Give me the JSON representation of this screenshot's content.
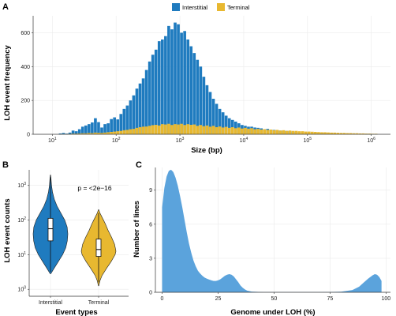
{
  "chart_data": [
    {
      "panel": "A",
      "type": "bar",
      "xlabel": "Size (bp)",
      "ylabel": "LOH event frequency",
      "x_scale": "log10",
      "xlim": [
        5,
        2000000
      ],
      "ylim": [
        0,
        700
      ],
      "x_ticks": [
        {
          "v": 10,
          "m": "10",
          "e": "1"
        },
        {
          "v": 100,
          "m": "10",
          "e": "2"
        },
        {
          "v": 1000,
          "m": "10",
          "e": "3"
        },
        {
          "v": 10000,
          "m": "10",
          "e": "4"
        },
        {
          "v": 100000,
          "m": "10",
          "e": "5"
        },
        {
          "v": 1000000,
          "m": "10",
          "e": "6"
        }
      ],
      "y_ticks": [
        "0",
        "200",
        "400",
        "600"
      ],
      "y_tick_values": [
        0,
        200,
        400,
        600
      ],
      "legend_position": "top",
      "bins_log10_start": [
        1.1,
        1.15,
        1.2,
        1.25,
        1.3,
        1.35,
        1.4,
        1.45,
        1.5,
        1.55,
        1.6,
        1.65,
        1.7,
        1.75,
        1.8,
        1.85,
        1.9,
        1.95,
        2.0,
        2.05,
        2.1,
        2.15,
        2.2,
        2.25,
        2.3,
        2.35,
        2.4,
        2.45,
        2.5,
        2.55,
        2.6,
        2.65,
        2.7,
        2.75,
        2.8,
        2.85,
        2.9,
        2.95,
        3.0,
        3.05,
        3.1,
        3.15,
        3.2,
        3.25,
        3.3,
        3.35,
        3.4,
        3.45,
        3.5,
        3.55,
        3.6,
        3.65,
        3.7,
        3.75,
        3.8,
        3.85,
        3.9,
        3.95,
        4.0,
        4.05,
        4.1,
        4.15,
        4.2,
        4.25,
        4.3,
        4.35,
        4.4,
        4.45,
        4.5,
        4.55,
        4.6,
        4.65,
        4.7,
        4.75,
        4.8,
        4.85,
        4.9,
        4.95,
        5.0,
        5.05,
        5.1,
        5.15,
        5.2,
        5.25,
        5.3,
        5.35,
        5.4,
        5.45,
        5.5,
        5.55,
        5.6,
        5.65,
        5.7,
        5.75,
        5.8,
        5.85,
        5.9,
        5.95,
        6.0,
        6.05
      ],
      "bin_width_log10": 0.05,
      "series": [
        {
          "name": "Interstitial",
          "color": "#1f7bbf",
          "values": [
            5,
            8,
            4,
            10,
            22,
            18,
            30,
            45,
            52,
            60,
            70,
            95,
            72,
            40,
            60,
            65,
            90,
            100,
            88,
            120,
            150,
            170,
            200,
            230,
            270,
            300,
            330,
            380,
            430,
            470,
            500,
            550,
            560,
            580,
            640,
            620,
            660,
            650,
            600,
            610,
            560,
            520,
            480,
            440,
            400,
            340,
            290,
            250,
            210,
            180,
            150,
            130,
            110,
            95,
            85,
            75,
            65,
            55,
            50,
            45,
            45,
            40,
            38,
            35,
            30,
            32,
            28,
            26,
            24,
            22,
            20,
            20,
            18,
            16,
            15,
            14,
            13,
            12,
            10,
            10,
            9,
            8,
            8,
            7,
            6,
            6,
            5,
            5,
            4,
            4,
            3,
            3,
            3,
            2,
            2,
            2,
            1,
            1,
            1,
            1
          ]
        },
        {
          "name": "Terminal",
          "color": "#e8b830",
          "values": [
            1,
            2,
            1,
            3,
            4,
            4,
            5,
            6,
            6,
            8,
            7,
            10,
            9,
            8,
            10,
            12,
            14,
            16,
            18,
            20,
            24,
            26,
            30,
            32,
            38,
            42,
            45,
            46,
            50,
            54,
            56,
            52,
            60,
            58,
            62,
            55,
            60,
            58,
            62,
            55,
            60,
            56,
            58,
            50,
            55,
            48,
            52,
            45,
            50,
            42,
            46,
            40,
            44,
            38,
            42,
            36,
            40,
            34,
            38,
            33,
            36,
            30,
            32,
            28,
            30,
            26,
            28,
            24,
            26,
            22,
            24,
            20,
            22,
            20,
            20,
            18,
            18,
            16,
            16,
            15,
            14,
            13,
            12,
            12,
            11,
            10,
            10,
            9,
            8,
            8,
            7,
            7,
            6,
            6,
            5,
            5,
            4,
            4,
            3,
            3
          ]
        }
      ]
    },
    {
      "panel": "B",
      "type": "violin",
      "xlabel": "Event types",
      "ylabel": "LOH event counts",
      "y_scale": "log10",
      "ylim_log10": [
        -0.2,
        3.45
      ],
      "y_ticks": [
        {
          "v": 0,
          "m": "10",
          "e": "0"
        },
        {
          "v": 1,
          "m": "10",
          "e": "1"
        },
        {
          "v": 2,
          "m": "10",
          "e": "2"
        },
        {
          "v": 3,
          "m": "10",
          "e": "3"
        }
      ],
      "annotation": "p = <2e−16",
      "categories": [
        "Interstitial",
        "Terminal"
      ],
      "groups": [
        {
          "name": "Interstitial",
          "color": "#1f7bbf",
          "density_log10": [
            [
              0.45,
              0.02
            ],
            [
              0.6,
              0.2
            ],
            [
              0.8,
              0.45
            ],
            [
              1.0,
              0.7
            ],
            [
              1.2,
              0.88
            ],
            [
              1.4,
              0.97
            ],
            [
              1.6,
              1.0
            ],
            [
              1.8,
              0.96
            ],
            [
              2.0,
              0.82
            ],
            [
              2.2,
              0.6
            ],
            [
              2.4,
              0.38
            ],
            [
              2.6,
              0.22
            ],
            [
              2.8,
              0.12
            ],
            [
              3.0,
              0.06
            ],
            [
              3.2,
              0.03
            ],
            [
              3.3,
              0.01
            ]
          ],
          "whisker_log10": [
            0.5,
            3.25
          ],
          "q1_log10": 1.4,
          "median_log10": 1.75,
          "q3_log10": 2.05
        },
        {
          "name": "Terminal",
          "color": "#e8b830",
          "density_log10": [
            [
              0.1,
              0.01
            ],
            [
              0.25,
              0.08
            ],
            [
              0.4,
              0.2
            ],
            [
              0.6,
              0.45
            ],
            [
              0.8,
              0.72
            ],
            [
              1.0,
              0.95
            ],
            [
              1.1,
              1.0
            ],
            [
              1.3,
              0.92
            ],
            [
              1.5,
              0.75
            ],
            [
              1.7,
              0.55
            ],
            [
              1.9,
              0.38
            ],
            [
              2.0,
              0.28
            ],
            [
              2.1,
              0.18
            ],
            [
              2.2,
              0.08
            ],
            [
              2.3,
              0.01
            ]
          ],
          "whisker_log10": [
            0.2,
            2.2
          ],
          "q1_log10": 0.95,
          "median_log10": 1.15,
          "q3_log10": 1.45
        }
      ]
    },
    {
      "panel": "C",
      "type": "area",
      "xlabel": "Genome under LOH (%)",
      "ylabel": "Number of lines",
      "xlim": [
        -3,
        102
      ],
      "ylim": [
        0,
        11
      ],
      "x_ticks": [
        "0",
        "25",
        "50",
        "75",
        "100"
      ],
      "x_tick_values": [
        0,
        25,
        50,
        75,
        100
      ],
      "y_ticks": [
        "0",
        "3",
        "6",
        "9"
      ],
      "y_tick_values": [
        0,
        3,
        6,
        9
      ],
      "color": "#5ba3dc",
      "x": [
        0,
        1,
        2,
        3,
        4,
        5,
        6,
        7,
        8,
        9,
        10,
        11,
        12,
        13,
        14,
        15,
        16,
        17,
        18,
        19,
        20,
        21,
        22,
        23,
        24,
        25,
        26,
        27,
        28,
        29,
        30,
        31,
        32,
        33,
        34,
        35,
        36,
        37,
        38,
        40,
        45,
        50,
        55,
        60,
        65,
        70,
        75,
        80,
        85,
        88,
        90,
        92,
        94,
        95,
        96,
        97,
        98
      ],
      "y": [
        7.5,
        9.2,
        10.2,
        10.7,
        10.8,
        10.6,
        10.1,
        9.4,
        8.5,
        7.5,
        6.4,
        5.3,
        4.3,
        3.5,
        2.8,
        2.3,
        1.9,
        1.65,
        1.45,
        1.3,
        1.2,
        1.12,
        1.05,
        1.0,
        1.0,
        1.05,
        1.15,
        1.3,
        1.45,
        1.55,
        1.6,
        1.55,
        1.4,
        1.15,
        0.9,
        0.6,
        0.4,
        0.25,
        0.15,
        0.06,
        0.02,
        0.02,
        0.02,
        0.02,
        0.02,
        0.02,
        0.03,
        0.05,
        0.2,
        0.5,
        0.85,
        1.2,
        1.5,
        1.6,
        1.55,
        1.35,
        1.0
      ]
    }
  ]
}
